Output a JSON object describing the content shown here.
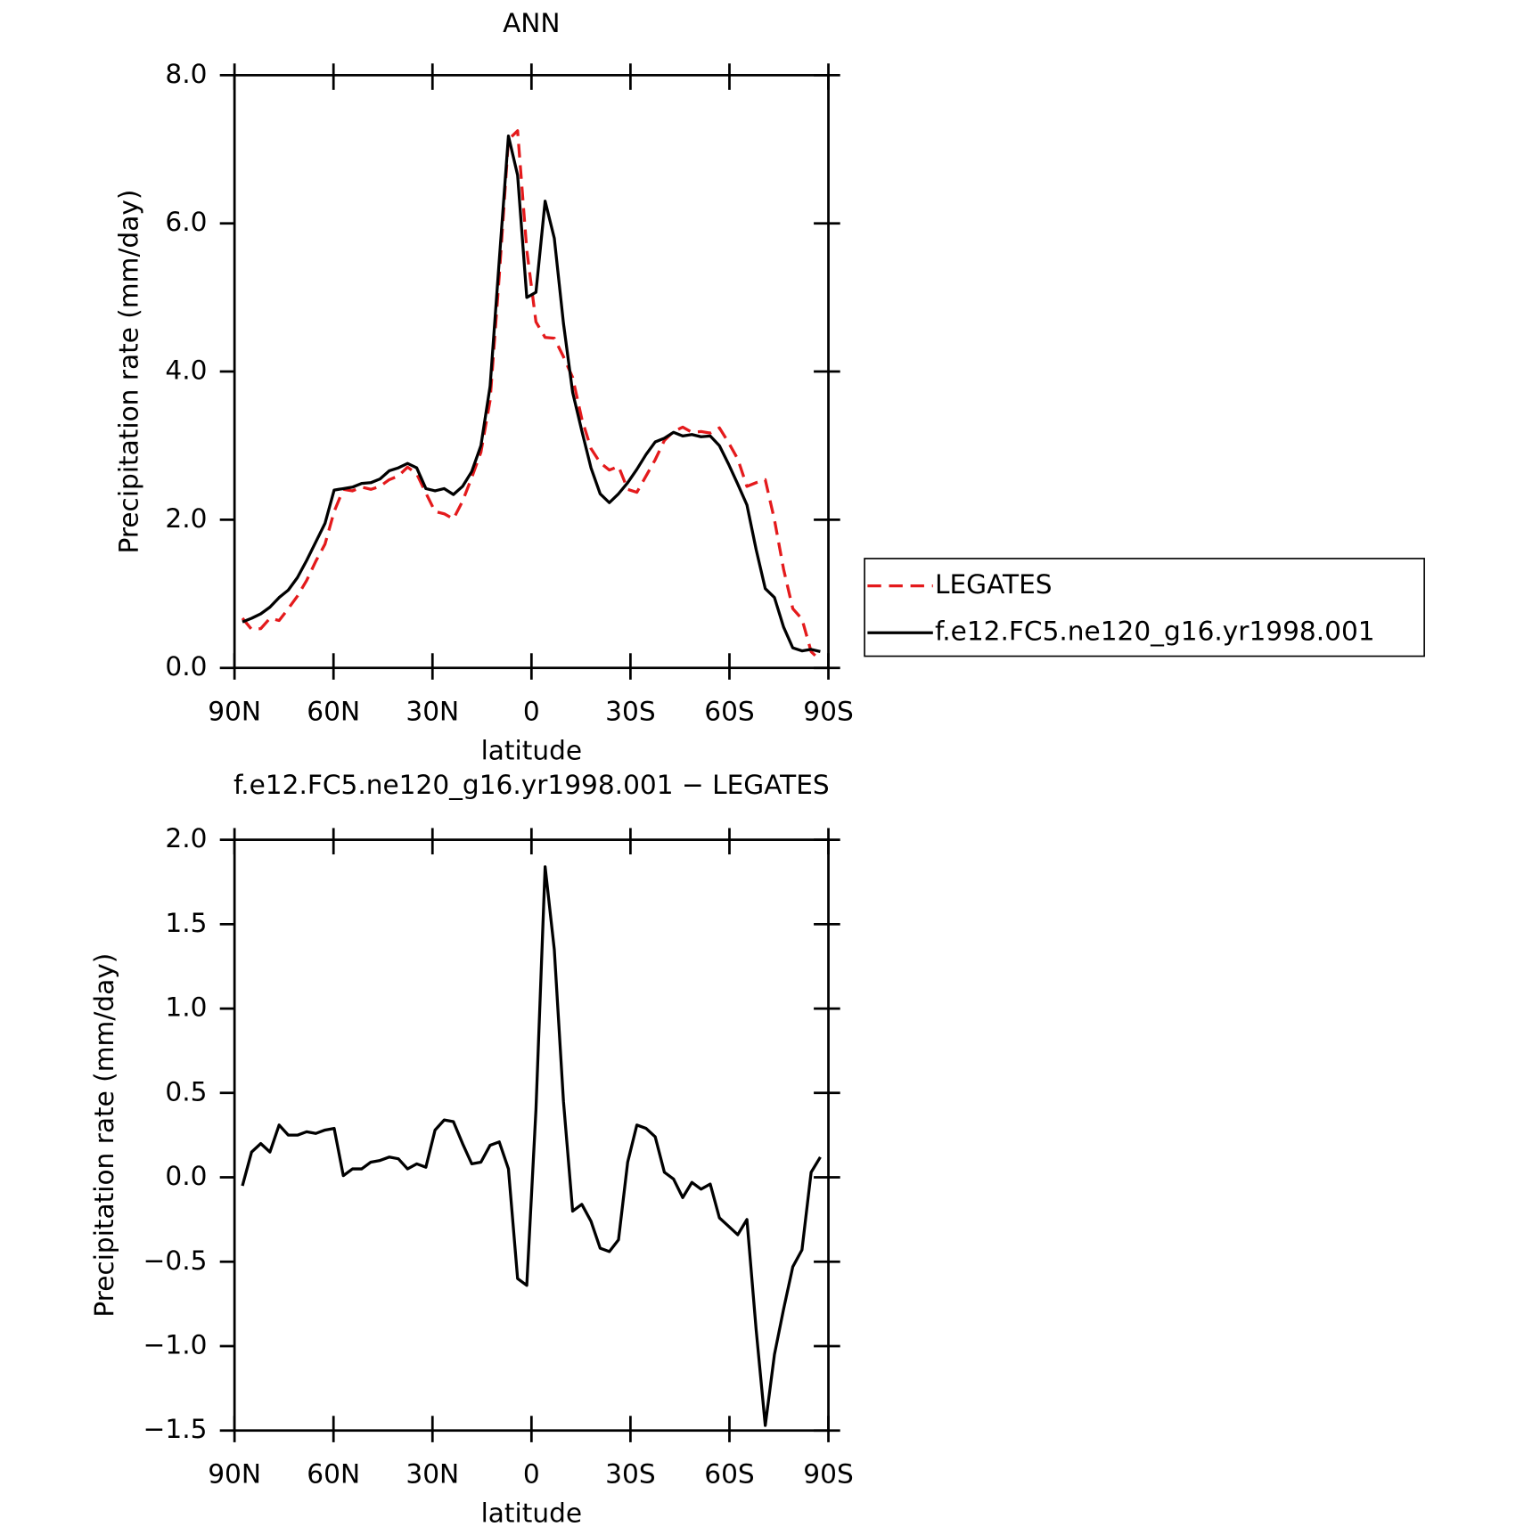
{
  "chart_data": [
    {
      "type": "line",
      "title": "ANN",
      "xlabel": "latitude",
      "ylabel": "Precipitation rate (mm/day)",
      "x": [
        87.6,
        84.82,
        82.04,
        79.26,
        76.48,
        73.7,
        70.92,
        68.14,
        65.36,
        62.58,
        59.8,
        57.02,
        54.24,
        51.46,
        48.68,
        45.9,
        43.12,
        40.34,
        37.56,
        34.78,
        32,
        29.22,
        26.44,
        23.66,
        20.88,
        18.1,
        15.32,
        12.54,
        9.76,
        6.98,
        4.2,
        1.42,
        -1.36,
        -4.14,
        -6.92,
        -9.7,
        -12.48,
        -15.26,
        -18.04,
        -20.82,
        -23.6,
        -26.38,
        -29.16,
        -31.94,
        -34.72,
        -37.5,
        -40.28,
        -43.06,
        -45.84,
        -48.62,
        -51.4,
        -54.18,
        -56.96,
        -59.74,
        -62.52,
        -65.3,
        -68.08,
        -70.86,
        -73.64,
        -76.42,
        -79.2,
        -81.98,
        -84.76,
        -87.54
      ],
      "series": [
        {
          "name": "LEGATES",
          "color": "#e41a1c",
          "style": "dashed",
          "values": [
            0.67,
            0.52,
            0.53,
            0.67,
            0.64,
            0.8,
            0.97,
            1.18,
            1.44,
            1.67,
            2.11,
            2.41,
            2.39,
            2.44,
            2.41,
            2.45,
            2.54,
            2.59,
            2.71,
            2.62,
            2.36,
            2.11,
            2.08,
            2.01,
            2.25,
            2.57,
            2.91,
            3.61,
            5.29,
            7.13,
            7.25,
            5.64,
            4.67,
            4.46,
            4.45,
            4.2,
            3.92,
            3.36,
            2.96,
            2.77,
            2.67,
            2.72,
            2.41,
            2.37,
            2.59,
            2.81,
            3.07,
            3.19,
            3.25,
            3.18,
            3.19,
            3.17,
            3.24,
            3.04,
            2.82,
            2.45,
            2.5,
            2.54,
            2.0,
            1.33,
            0.8,
            0.66,
            0.22,
            0.1
          ]
        },
        {
          "name": "f.e12.FC5.ne120_g16.yr1998.001",
          "color": "#000000",
          "style": "solid",
          "values": [
            0.62,
            0.67,
            0.73,
            0.82,
            0.95,
            1.05,
            1.22,
            1.45,
            1.7,
            1.95,
            2.4,
            2.42,
            2.44,
            2.49,
            2.5,
            2.55,
            2.66,
            2.7,
            2.76,
            2.7,
            2.42,
            2.39,
            2.42,
            2.34,
            2.45,
            2.65,
            3.0,
            3.8,
            5.5,
            7.18,
            6.65,
            5.0,
            5.07,
            6.3,
            5.8,
            4.65,
            3.72,
            3.2,
            2.7,
            2.35,
            2.23,
            2.35,
            2.5,
            2.68,
            2.88,
            3.05,
            3.1,
            3.18,
            3.13,
            3.15,
            3.12,
            3.13,
            3.0,
            2.75,
            2.48,
            2.2,
            1.6,
            1.07,
            0.95,
            0.55,
            0.27,
            0.23,
            0.25,
            0.22
          ]
        }
      ],
      "xlim": [
        90,
        -90
      ],
      "xticks": [
        {
          "value": 90,
          "label": "90N"
        },
        {
          "value": 60,
          "label": "60N"
        },
        {
          "value": 30,
          "label": "30N"
        },
        0,
        {
          "value": -30,
          "label": "30S"
        },
        {
          "value": -60,
          "label": "60S"
        },
        {
          "value": -90,
          "label": "90S"
        }
      ],
      "ylim": [
        0,
        8
      ],
      "yticks": [
        {
          "value": 0,
          "label": "0.0"
        },
        {
          "value": 2,
          "label": "2.0"
        },
        {
          "value": 4,
          "label": "4.0"
        },
        {
          "value": 6,
          "label": "6.0"
        },
        {
          "value": 8,
          "label": "8.0"
        }
      ],
      "legend": "right"
    },
    {
      "type": "line",
      "title": "f.e12.FC5.ne120_g16.yr1998.001 − LEGATES",
      "xlabel": "latitude",
      "ylabel": "Precipitation rate (mm/day)",
      "x": [
        87.6,
        84.82,
        82.04,
        79.26,
        76.48,
        73.7,
        70.92,
        68.14,
        65.36,
        62.58,
        59.8,
        57.02,
        54.24,
        51.46,
        48.68,
        45.9,
        43.12,
        40.34,
        37.56,
        34.78,
        32,
        29.22,
        26.44,
        23.66,
        20.88,
        18.1,
        15.32,
        12.54,
        9.76,
        6.98,
        4.2,
        1.42,
        -1.36,
        -4.14,
        -6.92,
        -9.7,
        -12.48,
        -15.26,
        -18.04,
        -20.82,
        -23.6,
        -26.38,
        -29.16,
        -31.94,
        -34.72,
        -37.5,
        -40.28,
        -43.06,
        -45.84,
        -48.62,
        -51.4,
        -54.18,
        -56.96,
        -59.74,
        -62.52,
        -65.3,
        -68.08,
        -70.86,
        -73.64,
        -76.42,
        -79.2,
        -81.98,
        -84.76,
        -87.54
      ],
      "values": [
        -0.05,
        0.15,
        0.2,
        0.15,
        0.31,
        0.25,
        0.25,
        0.27,
        0.26,
        0.28,
        0.29,
        0.01,
        0.05,
        0.05,
        0.09,
        0.1,
        0.12,
        0.11,
        0.05,
        0.08,
        0.06,
        0.28,
        0.34,
        0.33,
        0.2,
        0.08,
        0.09,
        0.19,
        0.21,
        0.05,
        -0.6,
        -0.64,
        0.4,
        1.84,
        1.35,
        0.45,
        -0.2,
        -0.16,
        -0.26,
        -0.42,
        -0.44,
        -0.37,
        0.09,
        0.31,
        0.29,
        0.24,
        0.03,
        -0.01,
        -0.12,
        -0.03,
        -0.07,
        -0.04,
        -0.24,
        -0.29,
        -0.34,
        -0.25,
        -0.9,
        -1.47,
        -1.05,
        -0.78,
        -0.53,
        -0.43,
        0.03,
        0.12
      ],
      "color": "#000000",
      "xlim": [
        90,
        -90
      ],
      "xticks": [
        {
          "value": 90,
          "label": "90N"
        },
        {
          "value": 60,
          "label": "60N"
        },
        {
          "value": 30,
          "label": "30N"
        },
        0,
        {
          "value": -30,
          "label": "30S"
        },
        {
          "value": -60,
          "label": "60S"
        },
        {
          "value": -90,
          "label": "90S"
        }
      ],
      "ylim": [
        -1.5,
        2
      ],
      "yticks": [
        {
          "value": -1.5,
          "label": "−1.5"
        },
        {
          "value": -1,
          "label": "−1.0"
        },
        {
          "value": -0.5,
          "label": "−0.5"
        },
        {
          "value": 0,
          "label": "0.0"
        },
        0.5,
        {
          "value": 1,
          "label": "1.0"
        },
        1.5,
        {
          "value": 2,
          "label": "2.0"
        }
      ]
    }
  ]
}
